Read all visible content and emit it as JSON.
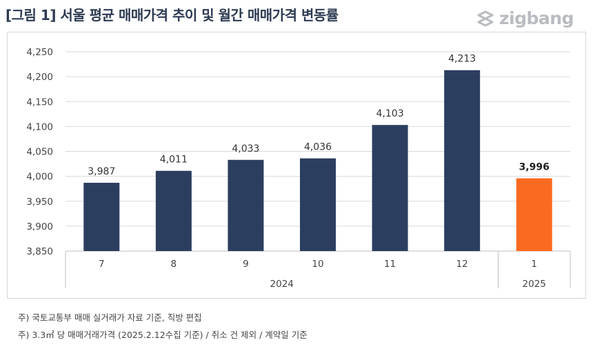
{
  "header": {
    "title": "[그림 1] 서울 평균 매매가격 추이 및 월간 매매가격 변동률",
    "brand": "zigbang"
  },
  "chart_data": {
    "type": "bar",
    "categories": [
      "7",
      "8",
      "9",
      "10",
      "11",
      "12",
      "1"
    ],
    "groups": [
      {
        "label": "2024",
        "categories": [
          "7",
          "8",
          "9",
          "10",
          "11",
          "12"
        ]
      },
      {
        "label": "2025",
        "categories": [
          "1"
        ]
      }
    ],
    "values": [
      3987,
      4011,
      4033,
      4036,
      4103,
      4213,
      3996
    ],
    "value_labels": [
      "3,987",
      "4,011",
      "4,033",
      "4,036",
      "4,103",
      "4,213",
      "3,996"
    ],
    "highlight_index": 6,
    "colors": {
      "bar": "#2c3e5f",
      "highlight": "#fa6a20",
      "grid": "#d9d9d9",
      "axis_text": "#444444"
    },
    "yticks": [
      3850,
      3900,
      3950,
      4000,
      4050,
      4100,
      4150,
      4200,
      4250
    ],
    "ytick_labels": [
      "3,850",
      "3,900",
      "3,950",
      "4,000",
      "4,050",
      "4,100",
      "4,150",
      "4,200",
      "4,250"
    ],
    "ylim": [
      3850,
      4250
    ],
    "grid": true,
    "legend": "none"
  },
  "notes": {
    "line1": "주) 국토교통부 매매 실거래가 자료 기준, 직방 편집",
    "line2": "주) 3.3㎡ 당 매매거래가격 (2025.2.12수집 기준) / 취소 건 제외 / 계약일 기준"
  }
}
